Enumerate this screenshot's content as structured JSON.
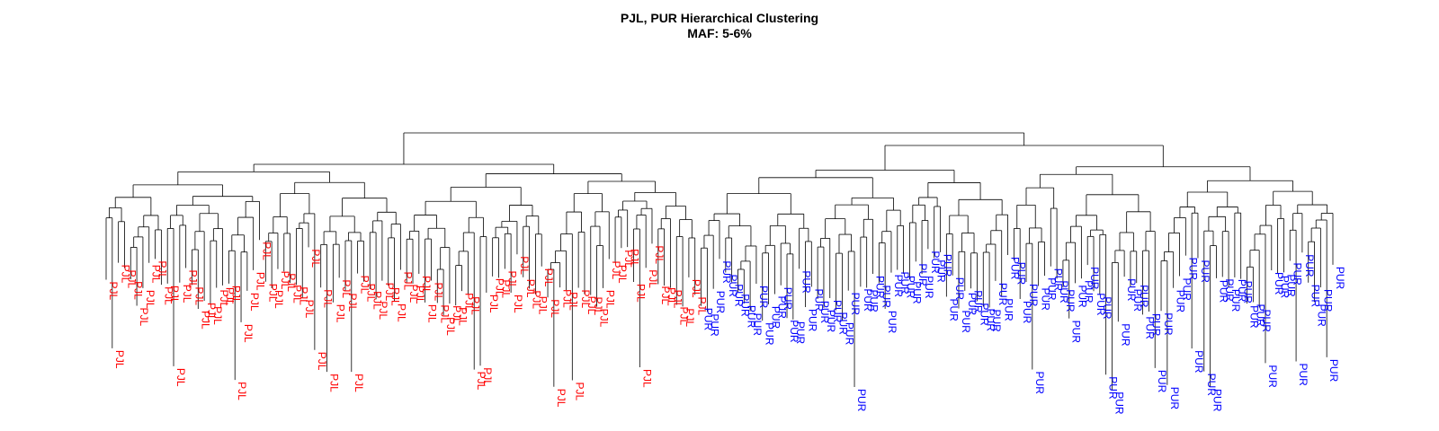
{
  "chart_data": {
    "type": "dendrogram",
    "title": "PJL, PUR Hierarchical Clustering",
    "subtitle": "MAF: 5-6%",
    "xlabel": "",
    "ylabel": "",
    "axes_shown": false,
    "colors": {
      "PJL": "#ff0000",
      "PUR": "#0000ff",
      "branches": "#000000"
    },
    "groups": [
      {
        "name": "PJL",
        "leaf_count": 97,
        "leaves": [
          "PJL",
          "PJL",
          "PJL",
          "PJL",
          "PJL",
          "PJL",
          "PJL",
          "PJL",
          "PJL",
          "PJL",
          "PJL",
          "PJL",
          "PJL",
          "PJL",
          "PJL",
          "PJL",
          "PJL",
          "PJL",
          "PJL",
          "PJL",
          "PJL",
          "PJL",
          "PJL",
          "PJL",
          "PJL",
          "PJL",
          "PJL",
          "PJL",
          "PJL",
          "PJL",
          "PJL",
          "PJL",
          "PJL",
          "PJL",
          "PJL",
          "PJL",
          "PJL",
          "PJL",
          "PJL",
          "PJL",
          "PJL",
          "PJL",
          "PJL",
          "PJL",
          "PJL",
          "PJL",
          "PJL",
          "PJL",
          "PJL",
          "PJL",
          "PJL",
          "PJL",
          "PJL",
          "PJL",
          "PJL",
          "PJL",
          "PJL",
          "PJL",
          "PJL",
          "PJL",
          "PJL",
          "PJL",
          "PJL",
          "PJL",
          "PJL",
          "PJL",
          "PJL",
          "PJL",
          "PJL",
          "PJL",
          "PJL",
          "PJL",
          "PJL",
          "PJL",
          "PJL",
          "PJL",
          "PJL",
          "PJL",
          "PJL",
          "PJL",
          "PJL",
          "PJL",
          "PJL",
          "PJL",
          "PJL",
          "PJL",
          "PJL",
          "PJL",
          "PJL",
          "PJL",
          "PJL",
          "PJL",
          "PJL",
          "PJL",
          "PJL",
          "PJL",
          "PJL"
        ]
      },
      {
        "name": "PUR",
        "leaf_count": 104,
        "leaves": [
          "PUR",
          "PUR",
          "PUR",
          "PUR",
          "PUR",
          "PUR",
          "PUR",
          "PUR",
          "PUR",
          "PUR",
          "PUR",
          "PUR",
          "PUR",
          "PUR",
          "PUR",
          "PUR",
          "PUR",
          "PUR",
          "PUR",
          "PUR",
          "PUR",
          "PUR",
          "PUR",
          "PUR",
          "PUR",
          "PUR",
          "PUR",
          "PUR",
          "PUR",
          "PUR",
          "PUR",
          "PUR",
          "PUR",
          "PUR",
          "PUR",
          "PUR",
          "PUR",
          "PUR",
          "PUR",
          "PUR",
          "PUR",
          "PUR",
          "PUR",
          "PUR",
          "PUR",
          "PUR",
          "PUR",
          "PUR",
          "PUR",
          "PUR",
          "PUR",
          "PUR",
          "PUR",
          "PUR",
          "PUR",
          "PUR",
          "PUR",
          "PUR",
          "PUR",
          "PUR",
          "PUR",
          "PUR",
          "PUR",
          "PUR",
          "PUR",
          "PUR",
          "PUR",
          "PUR",
          "PUR",
          "PUR",
          "PUR",
          "PUR",
          "PUR",
          "PUR",
          "PUR",
          "PUR",
          "PUR",
          "PUR",
          "PUR",
          "PUR",
          "PUR",
          "PUR",
          "PUR",
          "PUR",
          "PUR",
          "PUR",
          "PUR",
          "PUR",
          "PUR",
          "PUR",
          "PUR",
          "PUR",
          "PUR",
          "PUR",
          "PUR",
          "PUR",
          "PUR",
          "PUR",
          "PUR",
          "PUR",
          "PUR",
          "PUR",
          "PUR",
          "PUR"
        ]
      }
    ],
    "root_merge": [
      "PJL",
      "PUR"
    ]
  }
}
